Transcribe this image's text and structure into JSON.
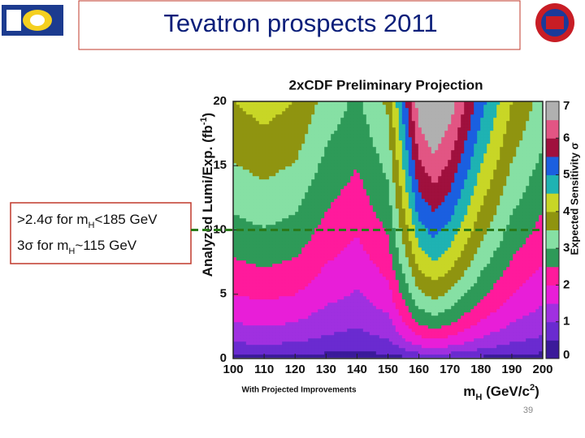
{
  "header": {
    "title": "Tevatron prospects 2011"
  },
  "plot": {
    "title": "2xCDF Preliminary Projection",
    "x_label": [
      "m",
      "H",
      " (GeV/c",
      "2",
      ")"
    ],
    "y_label": [
      "Analyzed Lumi/Exp. (fb",
      "-1",
      ")"
    ],
    "colorbar_label": "Expected Sensitivity σ",
    "xticks": [
      100,
      110,
      120,
      130,
      140,
      150,
      160,
      170,
      180,
      190,
      200
    ],
    "yticks": [
      0,
      5,
      10,
      15,
      20
    ],
    "colorbar_ticks": [
      0,
      1,
      2,
      3,
      4,
      5,
      6,
      7
    ],
    "footnote": "With Projected Improvements"
  },
  "annotations": [
    [
      ">2.4σ for m",
      "H",
      "<185 GeV"
    ],
    [
      "3σ for m",
      "H",
      "~115 GeV"
    ]
  ],
  "page_number": "39"
}
